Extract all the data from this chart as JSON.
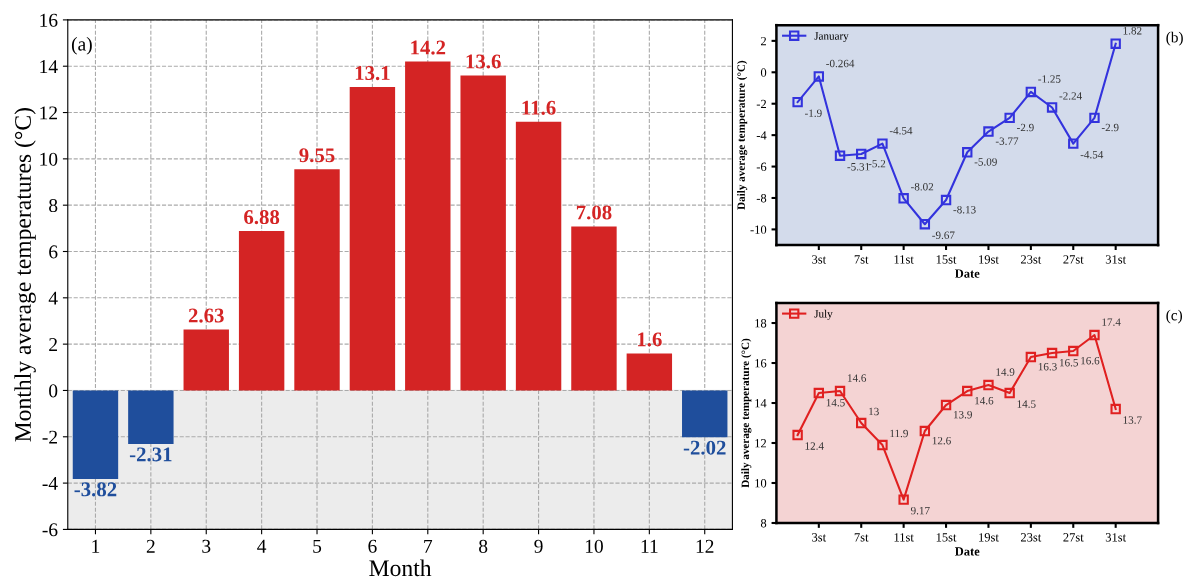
{
  "chart_data": [
    {
      "type": "bar",
      "xlabel": "Month",
      "ylabel": "Monthly average temperatures (°C)",
      "categories": [
        "1",
        "2",
        "3",
        "4",
        "5",
        "6",
        "7",
        "8",
        "9",
        "10",
        "11",
        "12"
      ],
      "values": [
        -3.82,
        -2.31,
        2.63,
        6.88,
        9.55,
        13.1,
        14.2,
        13.6,
        11.6,
        7.08,
        1.6,
        -2.02
      ],
      "colors": [
        "#1f4e9c",
        "#1f4e9c",
        "#d42424",
        "#d42424",
        "#d42424",
        "#d42424",
        "#d42424",
        "#d42424",
        "#d42424",
        "#d42424",
        "#d42424",
        "#1f4e9c"
      ],
      "data_labels": true,
      "ylim": [
        -6,
        16
      ],
      "yticks": [
        -6,
        -4,
        -2,
        0,
        2,
        4,
        6,
        8,
        10,
        12,
        14,
        16
      ],
      "grid": true,
      "bands": [
        {
          "axis": "y",
          "from": -6,
          "to": 0,
          "color": "#ececec"
        }
      ],
      "annotations": [
        "(a)"
      ]
    },
    {
      "type": "line",
      "xlabel": "Date",
      "ylabel": "Daily average temperature (°C)",
      "x": [
        1,
        3,
        5,
        7,
        9,
        11,
        13,
        15,
        17,
        19,
        21,
        23,
        25,
        27,
        29,
        31
      ],
      "series": [
        {
          "name": "January",
          "color": "#3333dd",
          "values": [
            -1.9,
            -0.264,
            -5.31,
            -5.2,
            -4.54,
            -8.02,
            -9.67,
            -8.13,
            -5.09,
            -3.77,
            -2.9,
            -1.25,
            -2.24,
            -4.54,
            -2.9,
            1.82
          ]
        }
      ],
      "data_labels": true,
      "marker": "square",
      "line_style": "solid",
      "legend": "top left",
      "xlim": [
        -1,
        35
      ],
      "xticks": [
        {
          "value": 3,
          "label": "3st"
        },
        {
          "value": 7,
          "label": "7st"
        },
        {
          "value": 11,
          "label": "11st"
        },
        {
          "value": 15,
          "label": "15st"
        },
        {
          "value": 19,
          "label": "19st"
        },
        {
          "value": 23,
          "label": "23st"
        },
        {
          "value": 27,
          "label": "27st"
        },
        {
          "value": 31,
          "label": "31st"
        }
      ],
      "ylim": [
        -11,
        3
      ],
      "yticks": [
        -10,
        -8,
        -6,
        -4,
        -2,
        0,
        2
      ],
      "annotations": [
        "(b)"
      ]
    },
    {
      "type": "line",
      "xlabel": "Date",
      "ylabel": "Daily average temperature (°C)",
      "x": [
        1,
        3,
        5,
        7,
        9,
        11,
        13,
        15,
        17,
        19,
        21,
        23,
        25,
        27,
        29,
        31
      ],
      "series": [
        {
          "name": "July",
          "color": "#e02020",
          "values": [
            12.4,
            14.5,
            14.6,
            13,
            11.9,
            9.17,
            12.6,
            13.9,
            14.6,
            14.9,
            14.5,
            16.3,
            16.5,
            16.6,
            17.4,
            13.7
          ]
        }
      ],
      "data_labels": true,
      "marker": "square",
      "line_style": "solid",
      "legend": "top left",
      "xlim": [
        -1,
        35
      ],
      "xticks": [
        {
          "value": 3,
          "label": "3st"
        },
        {
          "value": 7,
          "label": "7st"
        },
        {
          "value": 11,
          "label": "11st"
        },
        {
          "value": 15,
          "label": "15st"
        },
        {
          "value": 19,
          "label": "19st"
        },
        {
          "value": 23,
          "label": "23st"
        },
        {
          "value": 27,
          "label": "27st"
        },
        {
          "value": 31,
          "label": "31st"
        }
      ],
      "ylim": [
        8,
        19
      ],
      "yticks": [
        8,
        10,
        12,
        14,
        16,
        18
      ],
      "annotations": [
        "(c)"
      ]
    }
  ]
}
